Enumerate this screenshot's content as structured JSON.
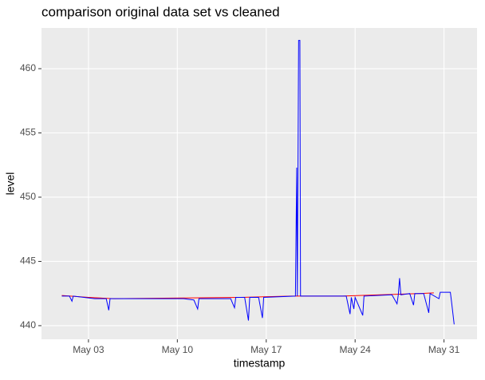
{
  "chart_data": {
    "type": "line",
    "title": "comparison original data set vs cleaned",
    "x_label": "timestamp",
    "y_label": "level",
    "xlim": [
      -0.7,
      33.6
    ],
    "ylim": [
      438.94,
      463.17
    ],
    "xticks": [
      {
        "value": 3,
        "label": "May 03"
      },
      {
        "value": 10,
        "label": "May 10"
      },
      {
        "value": 17,
        "label": "May 17"
      },
      {
        "value": 24,
        "label": "May 24"
      },
      {
        "value": 31,
        "label": "May 31"
      }
    ],
    "yticks": [
      440,
      445,
      450,
      455,
      460
    ],
    "grid": true,
    "series": [
      {
        "color": "#ff0000",
        "x": [
          0.9,
          3,
          5,
          15,
          19,
          23,
          26,
          29,
          30.2
        ],
        "values": [
          442.35,
          442.2,
          442.1,
          442.2,
          442.3,
          442.3,
          442.4,
          442.5,
          442.55
        ]
      },
      {
        "color": "#0000ff",
        "x": [
          0.9,
          1.5,
          1.7,
          1.8,
          3.5,
          4.4,
          4.6,
          4.7,
          10.5,
          11.3,
          11.6,
          11.7,
          14.2,
          14.5,
          14.6,
          15.3,
          15.6,
          15.7,
          16.4,
          16.7,
          16.8,
          19.3,
          19.4,
          19.45,
          19.55,
          19.65,
          19.7,
          23.3,
          23.6,
          23.7,
          23.9,
          24.0,
          24.6,
          24.7,
          26.9,
          27.3,
          27.4,
          27.5,
          27.6,
          28.3,
          28.6,
          28.7,
          29.4,
          29.8,
          29.9,
          30.6,
          30.7,
          31.5,
          31.6,
          31.8
        ],
        "values": [
          442.3,
          442.3,
          441.9,
          442.3,
          442.1,
          442.1,
          441.2,
          442.1,
          442.1,
          442.0,
          441.3,
          442.1,
          442.1,
          441.4,
          442.2,
          442.2,
          440.4,
          442.2,
          442.2,
          440.6,
          442.2,
          442.3,
          452.3,
          442.3,
          462.2,
          462.2,
          442.3,
          442.3,
          440.9,
          442.2,
          441.3,
          442.2,
          440.8,
          442.3,
          442.4,
          441.7,
          442.4,
          443.7,
          442.4,
          442.5,
          441.6,
          442.5,
          442.5,
          441.0,
          442.5,
          442.1,
          442.6,
          442.6,
          441.8,
          440.1
        ]
      }
    ]
  }
}
